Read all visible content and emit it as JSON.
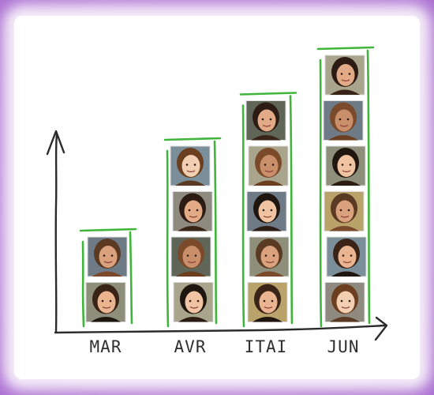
{
  "chart_data": {
    "type": "bar",
    "categories": [
      "MAR",
      "AVR",
      "ITAI",
      "JUN"
    ],
    "values": [
      2,
      4,
      5,
      6
    ],
    "title": "",
    "xlabel": "",
    "ylabel": "",
    "mark": "portrait photo per unit",
    "grid": false,
    "legend": "none"
  },
  "colors": {
    "frame": "#b67fd4",
    "paper": "#ffffff",
    "bar_outline": "#3fb63a",
    "axis": "#2b2b2b"
  },
  "portraits": [
    [
      "avatar-a",
      "avatar-b"
    ],
    [
      "avatar-c",
      "avatar-d",
      "avatar-e",
      "avatar-f"
    ],
    [
      "avatar-g",
      "avatar-h",
      "avatar-i",
      "avatar-j",
      "avatar-k"
    ],
    [
      "avatar-l",
      "avatar-m",
      "avatar-n",
      "avatar-o",
      "avatar-p",
      "avatar-q"
    ]
  ]
}
